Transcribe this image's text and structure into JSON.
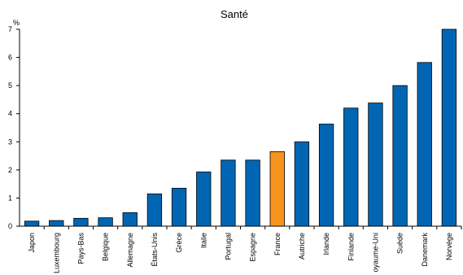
{
  "chart_data": {
    "type": "bar",
    "title": "Santé",
    "ylabel": "%",
    "xlabel": "",
    "ylim": [
      0,
      7
    ],
    "yticks": [
      0,
      1,
      2,
      3,
      4,
      5,
      6,
      7
    ],
    "grid": false,
    "categories": [
      "Japon",
      "Luxembourg",
      "Pays-Bas",
      "Belgique",
      "Allemagne",
      "États-Unis",
      "Grèce",
      "Italie",
      "Portugal",
      "Espagne",
      "France",
      "Autriche",
      "Irlande",
      "Finlande",
      "oyaume-Uni",
      "Suède",
      "Danemark",
      "Norvège"
    ],
    "values": [
      0.18,
      0.2,
      0.28,
      0.3,
      0.48,
      1.15,
      1.35,
      1.93,
      2.35,
      2.35,
      2.65,
      3.0,
      3.63,
      4.2,
      4.38,
      5.0,
      5.82,
      7.0
    ],
    "colors": {
      "default": "#0066b3",
      "highlight": "#f7941d"
    },
    "highlight": "France"
  }
}
